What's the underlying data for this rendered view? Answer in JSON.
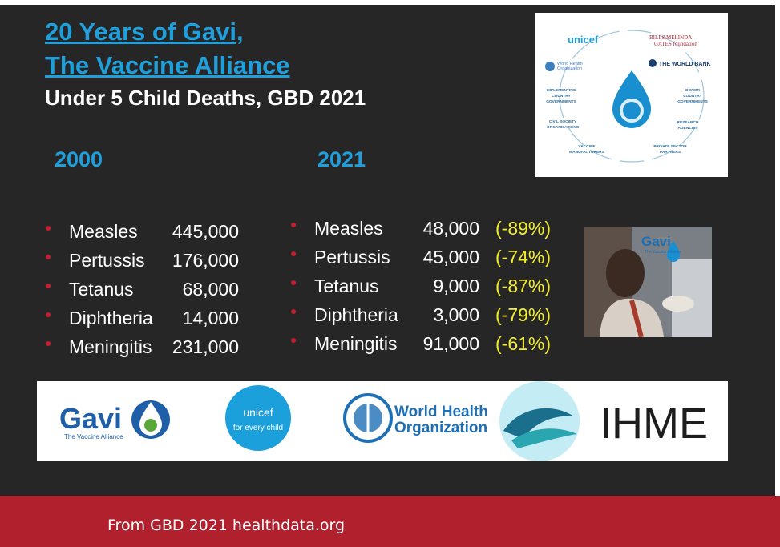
{
  "title_line1": "20 Years of Gavi,",
  "title_line2": "The Vaccine Alliance",
  "subtitle": "Under 5 Child Deaths, GBD 2021",
  "year_left": "2000",
  "year_right": "2021",
  "deaths_2000": [
    {
      "disease": "Measles",
      "deaths": "445,000"
    },
    {
      "disease": "Pertussis",
      "deaths": "176,000"
    },
    {
      "disease": "Tetanus",
      "deaths": "68,000"
    },
    {
      "disease": "Diphtheria",
      "deaths": "14,000"
    },
    {
      "disease": "Meningitis",
      "deaths": "231,000"
    }
  ],
  "deaths_2021": [
    {
      "disease": "Measles",
      "deaths": "48,000",
      "change": "(-89%)"
    },
    {
      "disease": "Pertussis",
      "deaths": "45,000",
      "change": "(-74%)"
    },
    {
      "disease": "Tetanus",
      "deaths": "9,000",
      "change": "(-87%)"
    },
    {
      "disease": "Diphtheria",
      "deaths": "3,000",
      "change": "(-79%)"
    },
    {
      "disease": "Meningitis",
      "deaths": "91,000",
      "change": "(-61%)"
    }
  ],
  "partner_diagram": {
    "unicef": "unicef",
    "gates": [
      "BILL&MELINDA",
      "GATES foundation"
    ],
    "who": [
      "World Health",
      "Organization"
    ],
    "world_bank": "THE WORLD BANK",
    "implementing": [
      "IMPLEMENTING",
      "COUNTRY",
      "GOVERNMENTS"
    ],
    "donor": [
      "DONOR",
      "COUNTRY",
      "GOVERNMENTS"
    ],
    "civil": [
      "CIVIL SOCIETY",
      "ORGANISATIONS"
    ],
    "research": [
      "RESEARCH",
      "AGENCIES"
    ],
    "vaccine": [
      "VACCINE",
      "MANUFACTURERS"
    ],
    "private": [
      "PRIVATE SECTOR",
      "PARTNERS"
    ]
  },
  "photo_logo": {
    "name": "Gavi",
    "tagline": "The Vaccine Alliance"
  },
  "logos": {
    "gavi": "Gavi",
    "gavi_tagline": "The Vaccine Alliance",
    "unicef": "unicef",
    "unicef_tagline": "for every child",
    "who_line1": "World Health",
    "who_line2": "Organization",
    "ihme": "IHME"
  },
  "footer": "From GBD 2021  healthdata.org",
  "colors": {
    "background": "#262626",
    "accent_blue": "#1fa0dc",
    "percent_yellow": "#f3ee2d",
    "footer_red": "#b0202d",
    "bullet_red": "#c0202f"
  }
}
